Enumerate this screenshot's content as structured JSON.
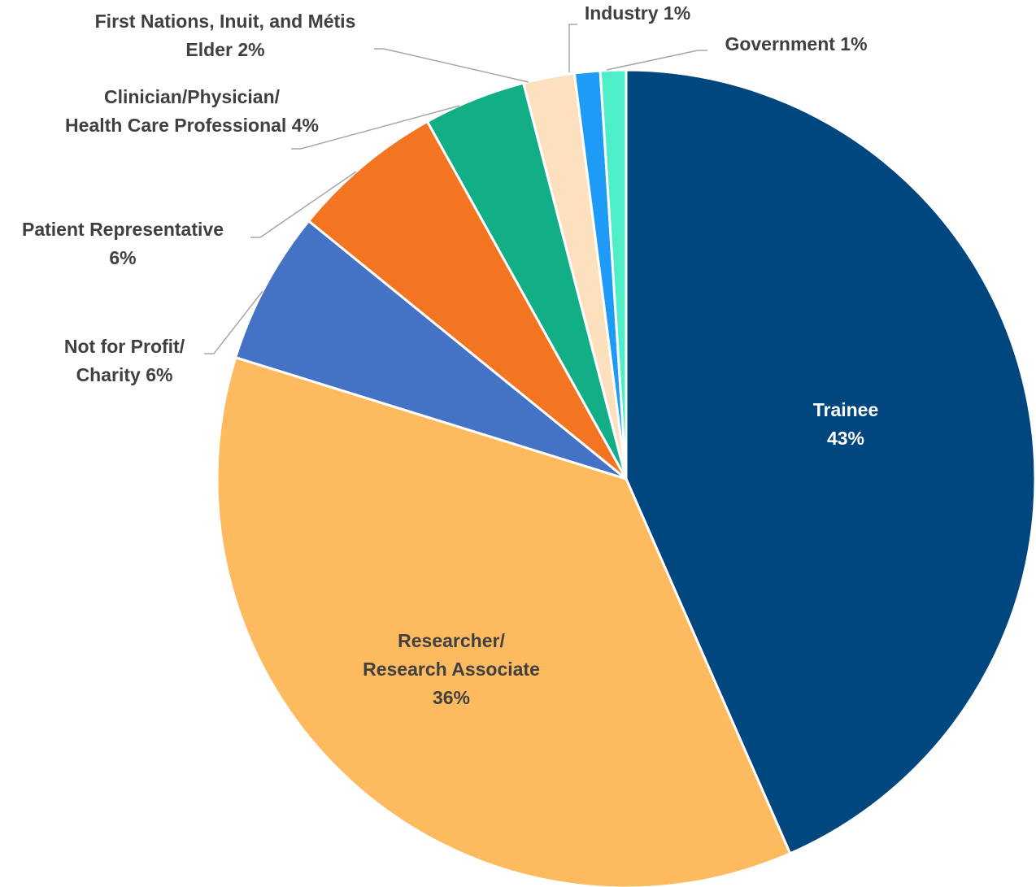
{
  "chart_data": {
    "type": "pie",
    "title": "",
    "slices": [
      {
        "label": "Trainee",
        "value": 43,
        "value_label": "43%",
        "color": "#00467f"
      },
      {
        "label": "Researcher/ Research Associate",
        "value": 36,
        "value_label": "36%",
        "color": "#fdba5f"
      },
      {
        "label": "Not for Profit/ Charity",
        "value": 6,
        "value_label": "6%",
        "color": "#4472c4"
      },
      {
        "label": "Patient Representative",
        "value": 6,
        "value_label": "6%",
        "color": "#f47521"
      },
      {
        "label": "Clinician/Physician/ Health Care Professional",
        "value": 4,
        "value_label": "4%",
        "color": "#12ae85"
      },
      {
        "label": "First Nations, Inuit, and Métis Elder",
        "value": 2,
        "value_label": "2%",
        "color": "#fde1bf"
      },
      {
        "label": "Industry",
        "value": 1,
        "value_label": "1%",
        "color": "#1e9af7"
      },
      {
        "label": "Government",
        "value": 1,
        "value_label": "1%",
        "color": "#4eefc7"
      }
    ],
    "legend": "none",
    "data_labels": "category and percentage"
  }
}
